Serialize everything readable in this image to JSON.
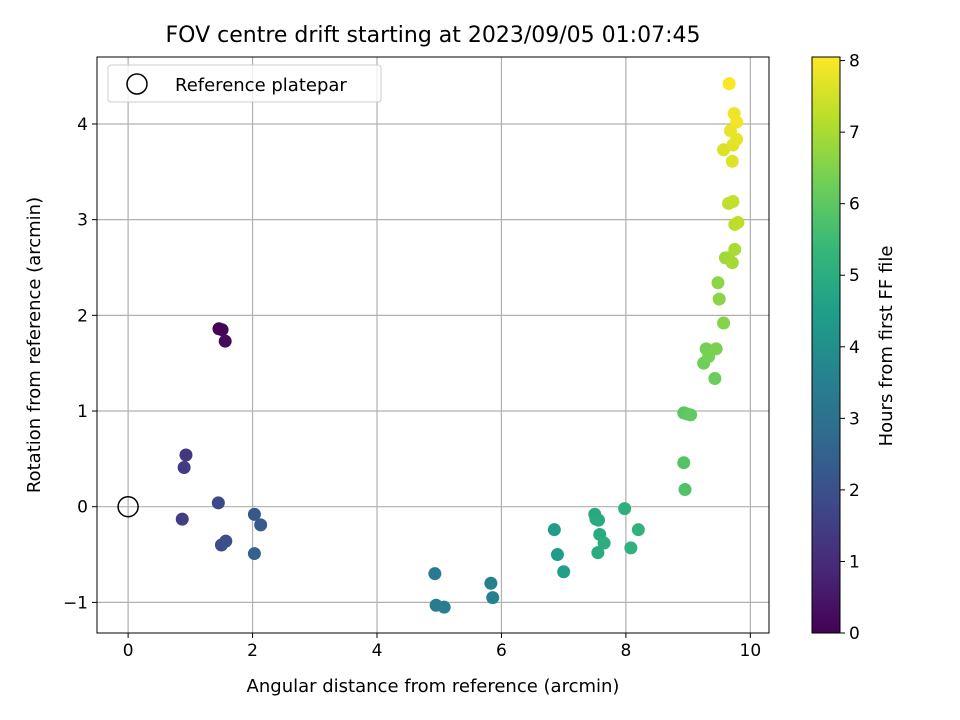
{
  "chart_data": {
    "type": "scatter",
    "title": "FOV centre drift starting at 2023/09/05 01:07:45",
    "xlabel": "Angular distance from reference (arcmin)",
    "ylabel": "Rotation from reference (arcmin)",
    "xlim": [
      -0.5,
      10.3
    ],
    "ylim": [
      -1.32,
      4.7
    ],
    "xticks": [
      0,
      2,
      4,
      6,
      8,
      10
    ],
    "xtick_labels": [
      "0",
      "2",
      "4",
      "6",
      "8",
      "10"
    ],
    "yticks": [
      -1,
      0,
      1,
      2,
      3,
      4
    ],
    "ytick_labels": [
      "−1",
      "0",
      "1",
      "2",
      "3",
      "4"
    ],
    "grid": true,
    "legend": {
      "position": "upper-left",
      "entries": [
        "Reference platepar"
      ]
    },
    "reference_point": {
      "x": 0,
      "y": 0,
      "label": "Reference platepar"
    },
    "colorbar": {
      "label": "Hours from first FF file",
      "colormap": "viridis",
      "range": [
        0,
        8.05
      ],
      "ticks": [
        0,
        1,
        2,
        3,
        4,
        5,
        6,
        7,
        8
      ],
      "tick_labels": [
        "0",
        "1",
        "2",
        "3",
        "4",
        "5",
        "6",
        "7",
        "8"
      ],
      "colormap_stops": [
        "#440154",
        "#482878",
        "#3e4989",
        "#31688e",
        "#26828e",
        "#1f9e89",
        "#35b779",
        "#6ece58",
        "#b5de2b",
        "#fde725"
      ]
    },
    "points": [
      {
        "x": 1.46,
        "y": 1.86,
        "t": 0.05
      },
      {
        "x": 1.51,
        "y": 1.85,
        "t": 0.1
      },
      {
        "x": 1.56,
        "y": 1.73,
        "t": 0.2
      },
      {
        "x": 0.93,
        "y": 0.54,
        "t": 1.3
      },
      {
        "x": 0.9,
        "y": 0.41,
        "t": 1.4
      },
      {
        "x": 0.87,
        "y": -0.13,
        "t": 1.5
      },
      {
        "x": 1.45,
        "y": 0.04,
        "t": 1.8
      },
      {
        "x": 1.5,
        "y": -0.4,
        "t": 1.9
      },
      {
        "x": 1.57,
        "y": -0.36,
        "t": 2.0
      },
      {
        "x": 2.03,
        "y": -0.08,
        "t": 2.2
      },
      {
        "x": 2.13,
        "y": -0.19,
        "t": 2.3
      },
      {
        "x": 2.03,
        "y": -0.49,
        "t": 2.5
      },
      {
        "x": 4.93,
        "y": -0.7,
        "t": 3.3
      },
      {
        "x": 4.95,
        "y": -1.03,
        "t": 3.35
      },
      {
        "x": 5.08,
        "y": -1.05,
        "t": 3.4
      },
      {
        "x": 5.83,
        "y": -0.8,
        "t": 3.5
      },
      {
        "x": 5.86,
        "y": -0.95,
        "t": 3.55
      },
      {
        "x": 6.85,
        "y": -0.24,
        "t": 4.4
      },
      {
        "x": 6.9,
        "y": -0.5,
        "t": 4.45
      },
      {
        "x": 7.0,
        "y": -0.68,
        "t": 4.5
      },
      {
        "x": 7.5,
        "y": -0.08,
        "t": 4.8
      },
      {
        "x": 7.52,
        "y": -0.13,
        "t": 4.85
      },
      {
        "x": 7.56,
        "y": -0.14,
        "t": 4.9
      },
      {
        "x": 7.58,
        "y": -0.29,
        "t": 4.9
      },
      {
        "x": 7.55,
        "y": -0.48,
        "t": 4.95
      },
      {
        "x": 7.65,
        "y": -0.38,
        "t": 5.0
      },
      {
        "x": 7.98,
        "y": -0.02,
        "t": 5.1
      },
      {
        "x": 8.08,
        "y": -0.43,
        "t": 5.15
      },
      {
        "x": 8.2,
        "y": -0.24,
        "t": 5.2
      },
      {
        "x": 8.95,
        "y": 0.18,
        "t": 5.8
      },
      {
        "x": 8.93,
        "y": 0.46,
        "t": 5.85
      },
      {
        "x": 8.93,
        "y": 0.98,
        "t": 5.95
      },
      {
        "x": 8.98,
        "y": 0.97,
        "t": 6.0
      },
      {
        "x": 9.04,
        "y": 0.96,
        "t": 6.05
      },
      {
        "x": 9.43,
        "y": 1.34,
        "t": 6.2
      },
      {
        "x": 9.25,
        "y": 1.5,
        "t": 6.25
      },
      {
        "x": 9.29,
        "y": 1.65,
        "t": 6.3
      },
      {
        "x": 9.33,
        "y": 1.57,
        "t": 6.35
      },
      {
        "x": 9.45,
        "y": 1.65,
        "t": 6.4
      },
      {
        "x": 9.57,
        "y": 1.92,
        "t": 6.55
      },
      {
        "x": 9.5,
        "y": 2.17,
        "t": 6.6
      },
      {
        "x": 9.48,
        "y": 2.34,
        "t": 6.65
      },
      {
        "x": 9.6,
        "y": 2.6,
        "t": 6.85
      },
      {
        "x": 9.65,
        "y": 2.6,
        "t": 6.9
      },
      {
        "x": 9.71,
        "y": 2.55,
        "t": 6.95
      },
      {
        "x": 9.75,
        "y": 2.69,
        "t": 7.0
      },
      {
        "x": 9.75,
        "y": 2.95,
        "t": 7.2
      },
      {
        "x": 9.8,
        "y": 2.97,
        "t": 7.25
      },
      {
        "x": 9.65,
        "y": 3.17,
        "t": 7.3
      },
      {
        "x": 9.72,
        "y": 3.19,
        "t": 7.35
      },
      {
        "x": 9.57,
        "y": 3.73,
        "t": 7.6
      },
      {
        "x": 9.71,
        "y": 3.61,
        "t": 7.65
      },
      {
        "x": 9.72,
        "y": 3.78,
        "t": 7.7
      },
      {
        "x": 9.78,
        "y": 3.84,
        "t": 7.75
      },
      {
        "x": 9.68,
        "y": 3.93,
        "t": 7.8
      },
      {
        "x": 9.74,
        "y": 4.11,
        "t": 7.85
      },
      {
        "x": 9.78,
        "y": 4.02,
        "t": 7.9
      },
      {
        "x": 9.66,
        "y": 4.42,
        "t": 8.0
      }
    ]
  }
}
